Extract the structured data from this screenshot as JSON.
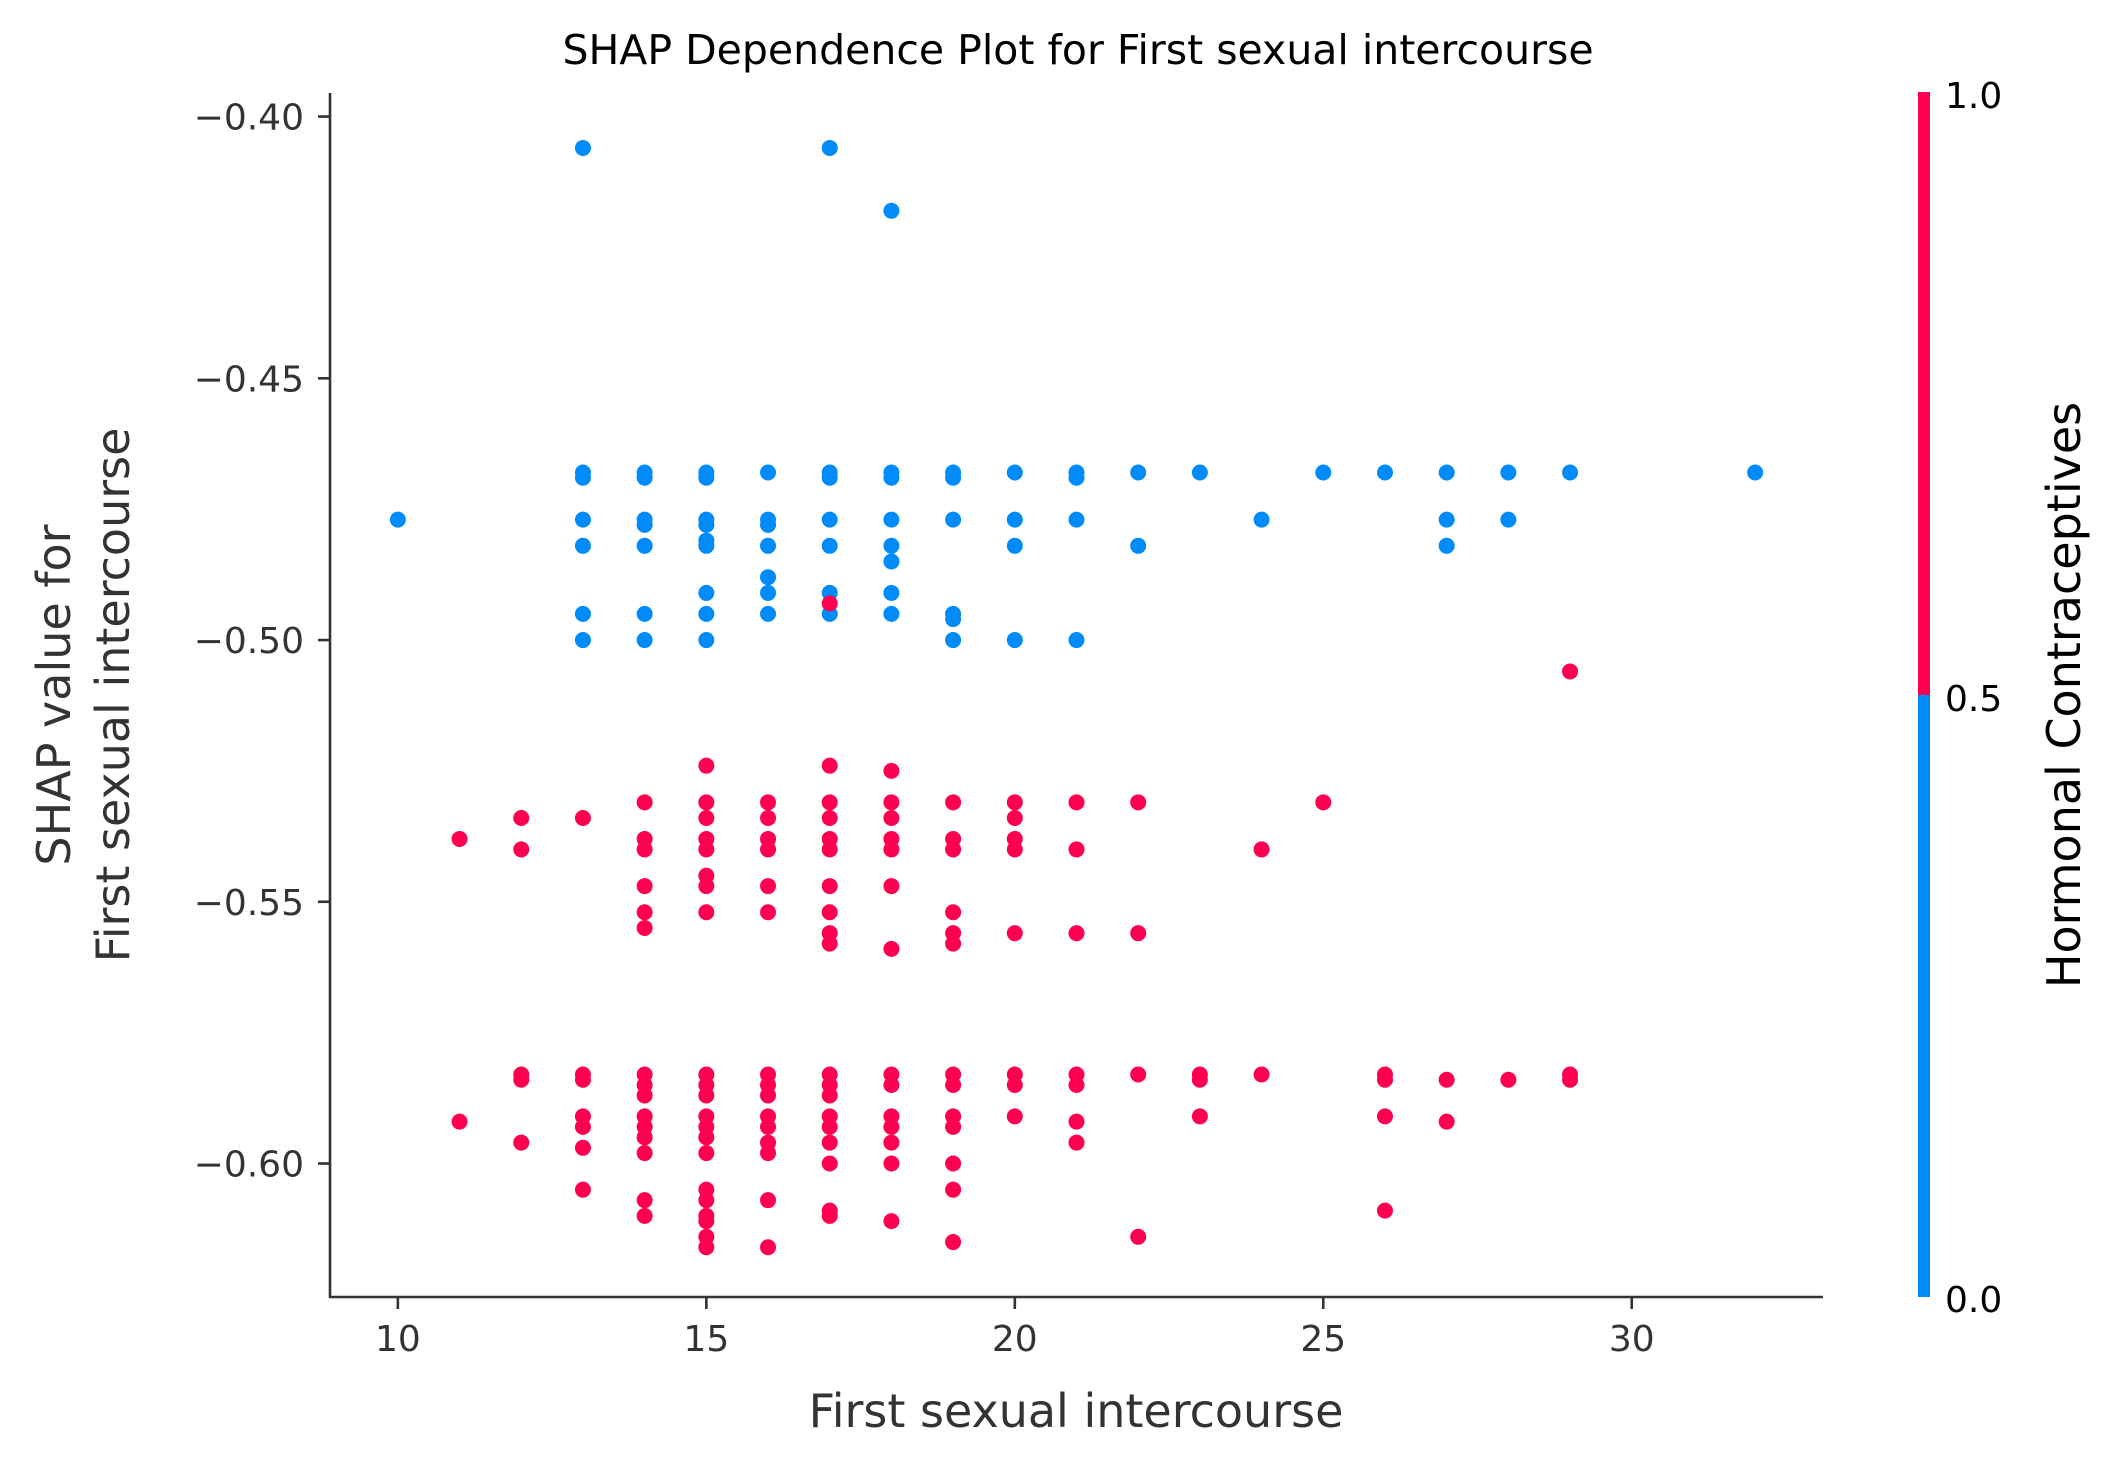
{
  "chart_data": {
    "type": "scatter",
    "title": "SHAP Dependence Plot for First sexual intercourse",
    "xlabel": "First sexual intercourse",
    "ylabel_lines": [
      "SHAP value for",
      "First sexual intercourse"
    ],
    "xlim": [
      8.9,
      33.1
    ],
    "ylim": [
      -0.6255,
      -0.3955
    ],
    "xticks": [
      10,
      15,
      20,
      25,
      30
    ],
    "xtick_labels": [
      "10",
      "15",
      "20",
      "25",
      "30"
    ],
    "yticks": [
      -0.4,
      -0.45,
      -0.5,
      -0.55,
      -0.6
    ],
    "ytick_labels": [
      "−0.40",
      "−0.45",
      "−0.50",
      "−0.55",
      "−0.60"
    ],
    "colorbar": {
      "label": "Hormonal Contraceptives",
      "ticks": [
        0.0,
        0.5,
        1.0
      ],
      "tick_labels": [
        "0.0",
        "0.5",
        "1.0"
      ],
      "low_color": "#008bfb",
      "high_color": "#ff0051"
    },
    "grid": false,
    "series": [
      {
        "color_value": 0,
        "color": "#008bfb",
        "points": [
          [
            10,
            -0.477
          ],
          [
            13,
            -0.406
          ],
          [
            13,
            -0.468
          ],
          [
            13,
            -0.469
          ],
          [
            13,
            -0.477
          ],
          [
            13,
            -0.482
          ],
          [
            13,
            -0.495
          ],
          [
            13,
            -0.5
          ],
          [
            14,
            -0.468
          ],
          [
            14,
            -0.469
          ],
          [
            14,
            -0.477
          ],
          [
            14,
            -0.478
          ],
          [
            14,
            -0.482
          ],
          [
            14,
            -0.495
          ],
          [
            14,
            -0.5
          ],
          [
            15,
            -0.468
          ],
          [
            15,
            -0.469
          ],
          [
            15,
            -0.477
          ],
          [
            15,
            -0.478
          ],
          [
            15,
            -0.481
          ],
          [
            15,
            -0.482
          ],
          [
            15,
            -0.491
          ],
          [
            15,
            -0.495
          ],
          [
            15,
            -0.5
          ],
          [
            16,
            -0.468
          ],
          [
            16,
            -0.477
          ],
          [
            16,
            -0.478
          ],
          [
            16,
            -0.482
          ],
          [
            16,
            -0.488
          ],
          [
            16,
            -0.491
          ],
          [
            16,
            -0.495
          ],
          [
            17,
            -0.406
          ],
          [
            17,
            -0.468
          ],
          [
            17,
            -0.469
          ],
          [
            17,
            -0.477
          ],
          [
            17,
            -0.482
          ],
          [
            17,
            -0.491
          ],
          [
            17,
            -0.495
          ],
          [
            18,
            -0.418
          ],
          [
            18,
            -0.468
          ],
          [
            18,
            -0.469
          ],
          [
            18,
            -0.477
          ],
          [
            18,
            -0.482
          ],
          [
            18,
            -0.485
          ],
          [
            18,
            -0.491
          ],
          [
            18,
            -0.495
          ],
          [
            19,
            -0.468
          ],
          [
            19,
            -0.469
          ],
          [
            19,
            -0.477
          ],
          [
            19,
            -0.495
          ],
          [
            19,
            -0.496
          ],
          [
            19,
            -0.5
          ],
          [
            20,
            -0.468
          ],
          [
            20,
            -0.477
          ],
          [
            20,
            -0.482
          ],
          [
            20,
            -0.5
          ],
          [
            21,
            -0.468
          ],
          [
            21,
            -0.469
          ],
          [
            21,
            -0.477
          ],
          [
            21,
            -0.5
          ],
          [
            22,
            -0.468
          ],
          [
            22,
            -0.482
          ],
          [
            23,
            -0.468
          ],
          [
            24,
            -0.477
          ],
          [
            25,
            -0.468
          ],
          [
            26,
            -0.468
          ],
          [
            27,
            -0.468
          ],
          [
            27,
            -0.477
          ],
          [
            27,
            -0.482
          ],
          [
            28,
            -0.468
          ],
          [
            28,
            -0.477
          ],
          [
            29,
            -0.468
          ],
          [
            32,
            -0.468
          ]
        ]
      },
      {
        "color_value": 1,
        "color": "#ff0051",
        "points": [
          [
            11,
            -0.538
          ],
          [
            11,
            -0.592
          ],
          [
            12,
            -0.534
          ],
          [
            12,
            -0.54
          ],
          [
            12,
            -0.583
          ],
          [
            12,
            -0.584
          ],
          [
            12,
            -0.596
          ],
          [
            13,
            -0.534
          ],
          [
            13,
            -0.583
          ],
          [
            13,
            -0.584
          ],
          [
            13,
            -0.591
          ],
          [
            13,
            -0.593
          ],
          [
            13,
            -0.597
          ],
          [
            13,
            -0.605
          ],
          [
            14,
            -0.531
          ],
          [
            14,
            -0.538
          ],
          [
            14,
            -0.54
          ],
          [
            14,
            -0.547
          ],
          [
            14,
            -0.552
          ],
          [
            14,
            -0.555
          ],
          [
            14,
            -0.583
          ],
          [
            14,
            -0.585
          ],
          [
            14,
            -0.587
          ],
          [
            14,
            -0.591
          ],
          [
            14,
            -0.593
          ],
          [
            14,
            -0.595
          ],
          [
            14,
            -0.598
          ],
          [
            14,
            -0.607
          ],
          [
            14,
            -0.61
          ],
          [
            15,
            -0.524
          ],
          [
            15,
            -0.531
          ],
          [
            15,
            -0.534
          ],
          [
            15,
            -0.538
          ],
          [
            15,
            -0.54
          ],
          [
            15,
            -0.545
          ],
          [
            15,
            -0.547
          ],
          [
            15,
            -0.552
          ],
          [
            15,
            -0.583
          ],
          [
            15,
            -0.585
          ],
          [
            15,
            -0.587
          ],
          [
            15,
            -0.591
          ],
          [
            15,
            -0.593
          ],
          [
            15,
            -0.595
          ],
          [
            15,
            -0.598
          ],
          [
            15,
            -0.605
          ],
          [
            15,
            -0.607
          ],
          [
            15,
            -0.61
          ],
          [
            15,
            -0.611
          ],
          [
            15,
            -0.614
          ],
          [
            15,
            -0.616
          ],
          [
            16,
            -0.531
          ],
          [
            16,
            -0.534
          ],
          [
            16,
            -0.538
          ],
          [
            16,
            -0.54
          ],
          [
            16,
            -0.547
          ],
          [
            16,
            -0.552
          ],
          [
            16,
            -0.583
          ],
          [
            16,
            -0.585
          ],
          [
            16,
            -0.587
          ],
          [
            16,
            -0.591
          ],
          [
            16,
            -0.593
          ],
          [
            16,
            -0.596
          ],
          [
            16,
            -0.598
          ],
          [
            16,
            -0.607
          ],
          [
            16,
            -0.616
          ],
          [
            17,
            -0.493
          ],
          [
            17,
            -0.524
          ],
          [
            17,
            -0.531
          ],
          [
            17,
            -0.534
          ],
          [
            17,
            -0.538
          ],
          [
            17,
            -0.54
          ],
          [
            17,
            -0.547
          ],
          [
            17,
            -0.552
          ],
          [
            17,
            -0.556
          ],
          [
            17,
            -0.558
          ],
          [
            17,
            -0.583
          ],
          [
            17,
            -0.585
          ],
          [
            17,
            -0.587
          ],
          [
            17,
            -0.591
          ],
          [
            17,
            -0.593
          ],
          [
            17,
            -0.596
          ],
          [
            17,
            -0.6
          ],
          [
            17,
            -0.609
          ],
          [
            17,
            -0.61
          ],
          [
            18,
            -0.525
          ],
          [
            18,
            -0.531
          ],
          [
            18,
            -0.534
          ],
          [
            18,
            -0.538
          ],
          [
            18,
            -0.54
          ],
          [
            18,
            -0.547
          ],
          [
            18,
            -0.559
          ],
          [
            18,
            -0.583
          ],
          [
            18,
            -0.585
          ],
          [
            18,
            -0.591
          ],
          [
            18,
            -0.593
          ],
          [
            18,
            -0.596
          ],
          [
            18,
            -0.6
          ],
          [
            18,
            -0.611
          ],
          [
            19,
            -0.531
          ],
          [
            19,
            -0.538
          ],
          [
            19,
            -0.54
          ],
          [
            19,
            -0.552
          ],
          [
            19,
            -0.556
          ],
          [
            19,
            -0.558
          ],
          [
            19,
            -0.583
          ],
          [
            19,
            -0.585
          ],
          [
            19,
            -0.591
          ],
          [
            19,
            -0.593
          ],
          [
            19,
            -0.6
          ],
          [
            19,
            -0.605
          ],
          [
            19,
            -0.615
          ],
          [
            20,
            -0.531
          ],
          [
            20,
            -0.534
          ],
          [
            20,
            -0.538
          ],
          [
            20,
            -0.54
          ],
          [
            20,
            -0.556
          ],
          [
            20,
            -0.583
          ],
          [
            20,
            -0.585
          ],
          [
            20,
            -0.591
          ],
          [
            21,
            -0.531
          ],
          [
            21,
            -0.54
          ],
          [
            21,
            -0.556
          ],
          [
            21,
            -0.583
          ],
          [
            21,
            -0.585
          ],
          [
            21,
            -0.592
          ],
          [
            21,
            -0.596
          ],
          [
            22,
            -0.531
          ],
          [
            22,
            -0.556
          ],
          [
            22,
            -0.583
          ],
          [
            22,
            -0.614
          ],
          [
            23,
            -0.583
          ],
          [
            23,
            -0.584
          ],
          [
            23,
            -0.591
          ],
          [
            24,
            -0.54
          ],
          [
            24,
            -0.583
          ],
          [
            25,
            -0.531
          ],
          [
            26,
            -0.583
          ],
          [
            26,
            -0.584
          ],
          [
            26,
            -0.591
          ],
          [
            26,
            -0.609
          ],
          [
            27,
            -0.584
          ],
          [
            27,
            -0.592
          ],
          [
            28,
            -0.584
          ],
          [
            29,
            -0.506
          ],
          [
            29,
            -0.583
          ],
          [
            29,
            -0.584
          ]
        ]
      }
    ]
  }
}
